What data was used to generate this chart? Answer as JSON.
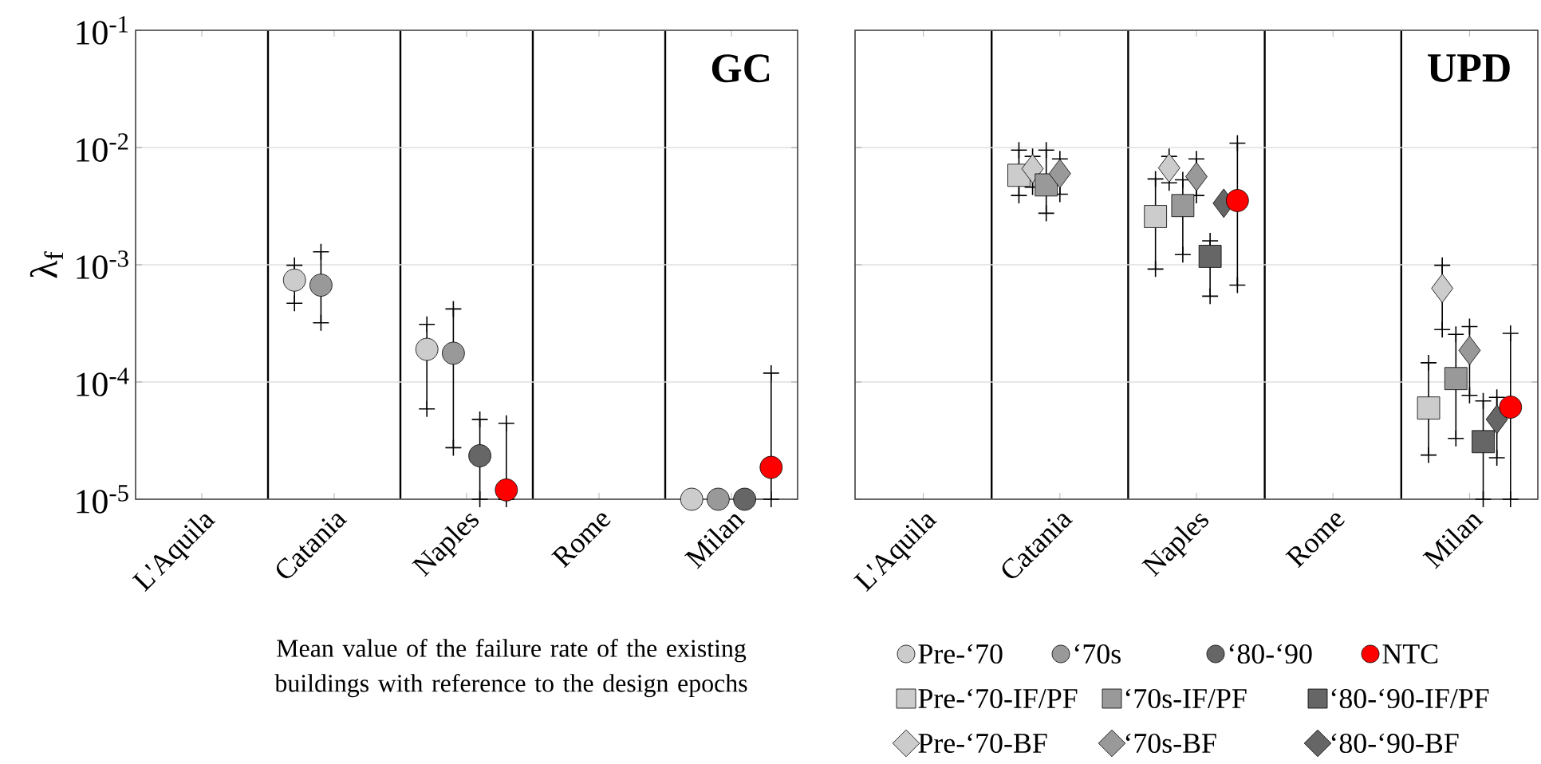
{
  "chart_data": [
    {
      "type": "scatter",
      "title": "GC",
      "ylabel": "λ$_{f}$",
      "log": "y",
      "grid": "y",
      "legend": "bottom",
      "categories": [
        "L'Aquila",
        "Catania",
        "Naples",
        "Rome",
        "Milan"
      ],
      "ylim": [
        1e-05,
        0.1
      ],
      "yticks": [
        {
          "value": 1e-05,
          "label": "10$^{-5}$"
        },
        {
          "value": 0.0001,
          "label": "10$^{-4}$"
        },
        {
          "value": 0.001,
          "label": "10$^{-3}$"
        },
        {
          "value": 0.01,
          "label": "10$^{-2}$"
        },
        {
          "value": 0.1,
          "label": "10$^{-1}$"
        }
      ],
      "annotations": [
        "Mean value of the failure rate of the existing buildings with reference to the design epochs"
      ],
      "series": [
        {
          "name": "Pre-‘70",
          "color": "#cccccc",
          "marker": "circle",
          "values": [
            null,
            0.00074,
            0.00019,
            null,
            1e-05
          ],
          "errors": [
            null,
            [
              0.00047,
              0.00099
            ],
            [
              5.9e-05,
              0.00031
            ],
            null,
            null
          ]
        },
        {
          "name": "‘70s",
          "color": "#999999",
          "marker": "circle",
          "values": [
            null,
            0.00067,
            0.000176,
            null,
            1e-05
          ],
          "errors": [
            null,
            [
              0.00032,
              0.00129
            ],
            [
              2.75e-05,
              0.00042
            ],
            null,
            null
          ]
        },
        {
          "name": "‘80-‘90",
          "color": "#666666",
          "marker": "circle",
          "values": [
            null,
            null,
            2.35e-05,
            null,
            1e-05
          ],
          "errors": [
            null,
            null,
            [
              1e-05,
              4.8e-05
            ],
            null,
            null
          ]
        },
        {
          "name": "NTC",
          "color": "#ff0000",
          "marker": "circle",
          "values": [
            null,
            null,
            1.2e-05,
            null,
            1.87e-05
          ],
          "errors": [
            null,
            null,
            [
              1e-05,
              4.45e-05
            ],
            null,
            [
              1e-05,
              0.000119
            ]
          ]
        }
      ]
    },
    {
      "type": "scatter",
      "title": "UPD",
      "log": "y",
      "grid": "y",
      "legend": "bottom",
      "tick_labels": "x",
      "categories": [
        "L'Aquila",
        "Catania",
        "Naples",
        "Rome",
        "Milan"
      ],
      "ylim": [
        1e-05,
        0.1
      ],
      "yticks": [
        {
          "value": 1e-05,
          "label": null
        },
        {
          "value": 0.0001,
          "label": null
        },
        {
          "value": 0.001,
          "label": null
        },
        {
          "value": 0.01,
          "label": null
        },
        {
          "value": 0.1,
          "label": null
        }
      ],
      "series": [
        {
          "name": "Pre-‘70-IF/PF",
          "color": "#cccccc",
          "marker": "square",
          "values": [
            null,
            0.0058,
            0.00258,
            null,
            6e-05
          ],
          "errors": [
            null,
            [
              0.0039,
              0.0095
            ],
            [
              0.00092,
              0.0054
            ],
            null,
            [
              2.38e-05,
              0.000146
            ]
          ]
        },
        {
          "name": "Pre-‘70-BF",
          "color": "#cccccc",
          "marker": "diamond",
          "values": [
            null,
            0.0066,
            0.0067,
            null,
            0.00063
          ],
          "errors": [
            null,
            [
              0.0046,
              0.0084
            ],
            [
              0.005,
              0.0084
            ],
            null,
            [
              0.00028,
              0.00099
            ]
          ]
        },
        {
          "name": "‘70s-IF/PF",
          "color": "#999999",
          "marker": "square",
          "values": [
            null,
            0.0048,
            0.0032,
            null,
            0.000107
          ],
          "errors": [
            null,
            [
              0.00275,
              0.0095
            ],
            [
              0.00122,
              0.0053
            ],
            null,
            [
              3.3e-05,
              0.000255
            ]
          ]
        },
        {
          "name": "‘70s-BF",
          "color": "#999999",
          "marker": "diamond",
          "values": [
            null,
            0.006,
            0.00565,
            null,
            0.000186
          ],
          "errors": [
            null,
            [
              0.004,
              0.008
            ],
            [
              0.0039,
              0.008
            ],
            null,
            [
              7.7e-05,
              0.000297
            ]
          ]
        },
        {
          "name": "‘80-‘90-IF/PF",
          "color": "#666666",
          "marker": "square",
          "values": [
            null,
            null,
            0.00118,
            null,
            3.1e-05
          ],
          "errors": [
            null,
            null,
            [
              0.00054,
              0.0016
            ],
            null,
            [
              1e-05,
              6.9e-05
            ]
          ]
        },
        {
          "name": "‘80-‘90-BF",
          "color": "#666666",
          "marker": "diamond",
          "values": [
            null,
            null,
            0.00335,
            null,
            4.8e-05
          ],
          "errors": [
            null,
            null,
            null,
            null,
            [
              2.26e-05,
              7.4e-05
            ]
          ]
        },
        {
          "color": "#ff0000",
          "marker": "circle",
          "values": [
            null,
            null,
            0.00353,
            null,
            6.1e-05
          ],
          "errors": [
            null,
            null,
            [
              0.00067,
              0.0109
            ],
            null,
            [
              1e-05,
              0.00026
            ]
          ]
        }
      ]
    }
  ]
}
